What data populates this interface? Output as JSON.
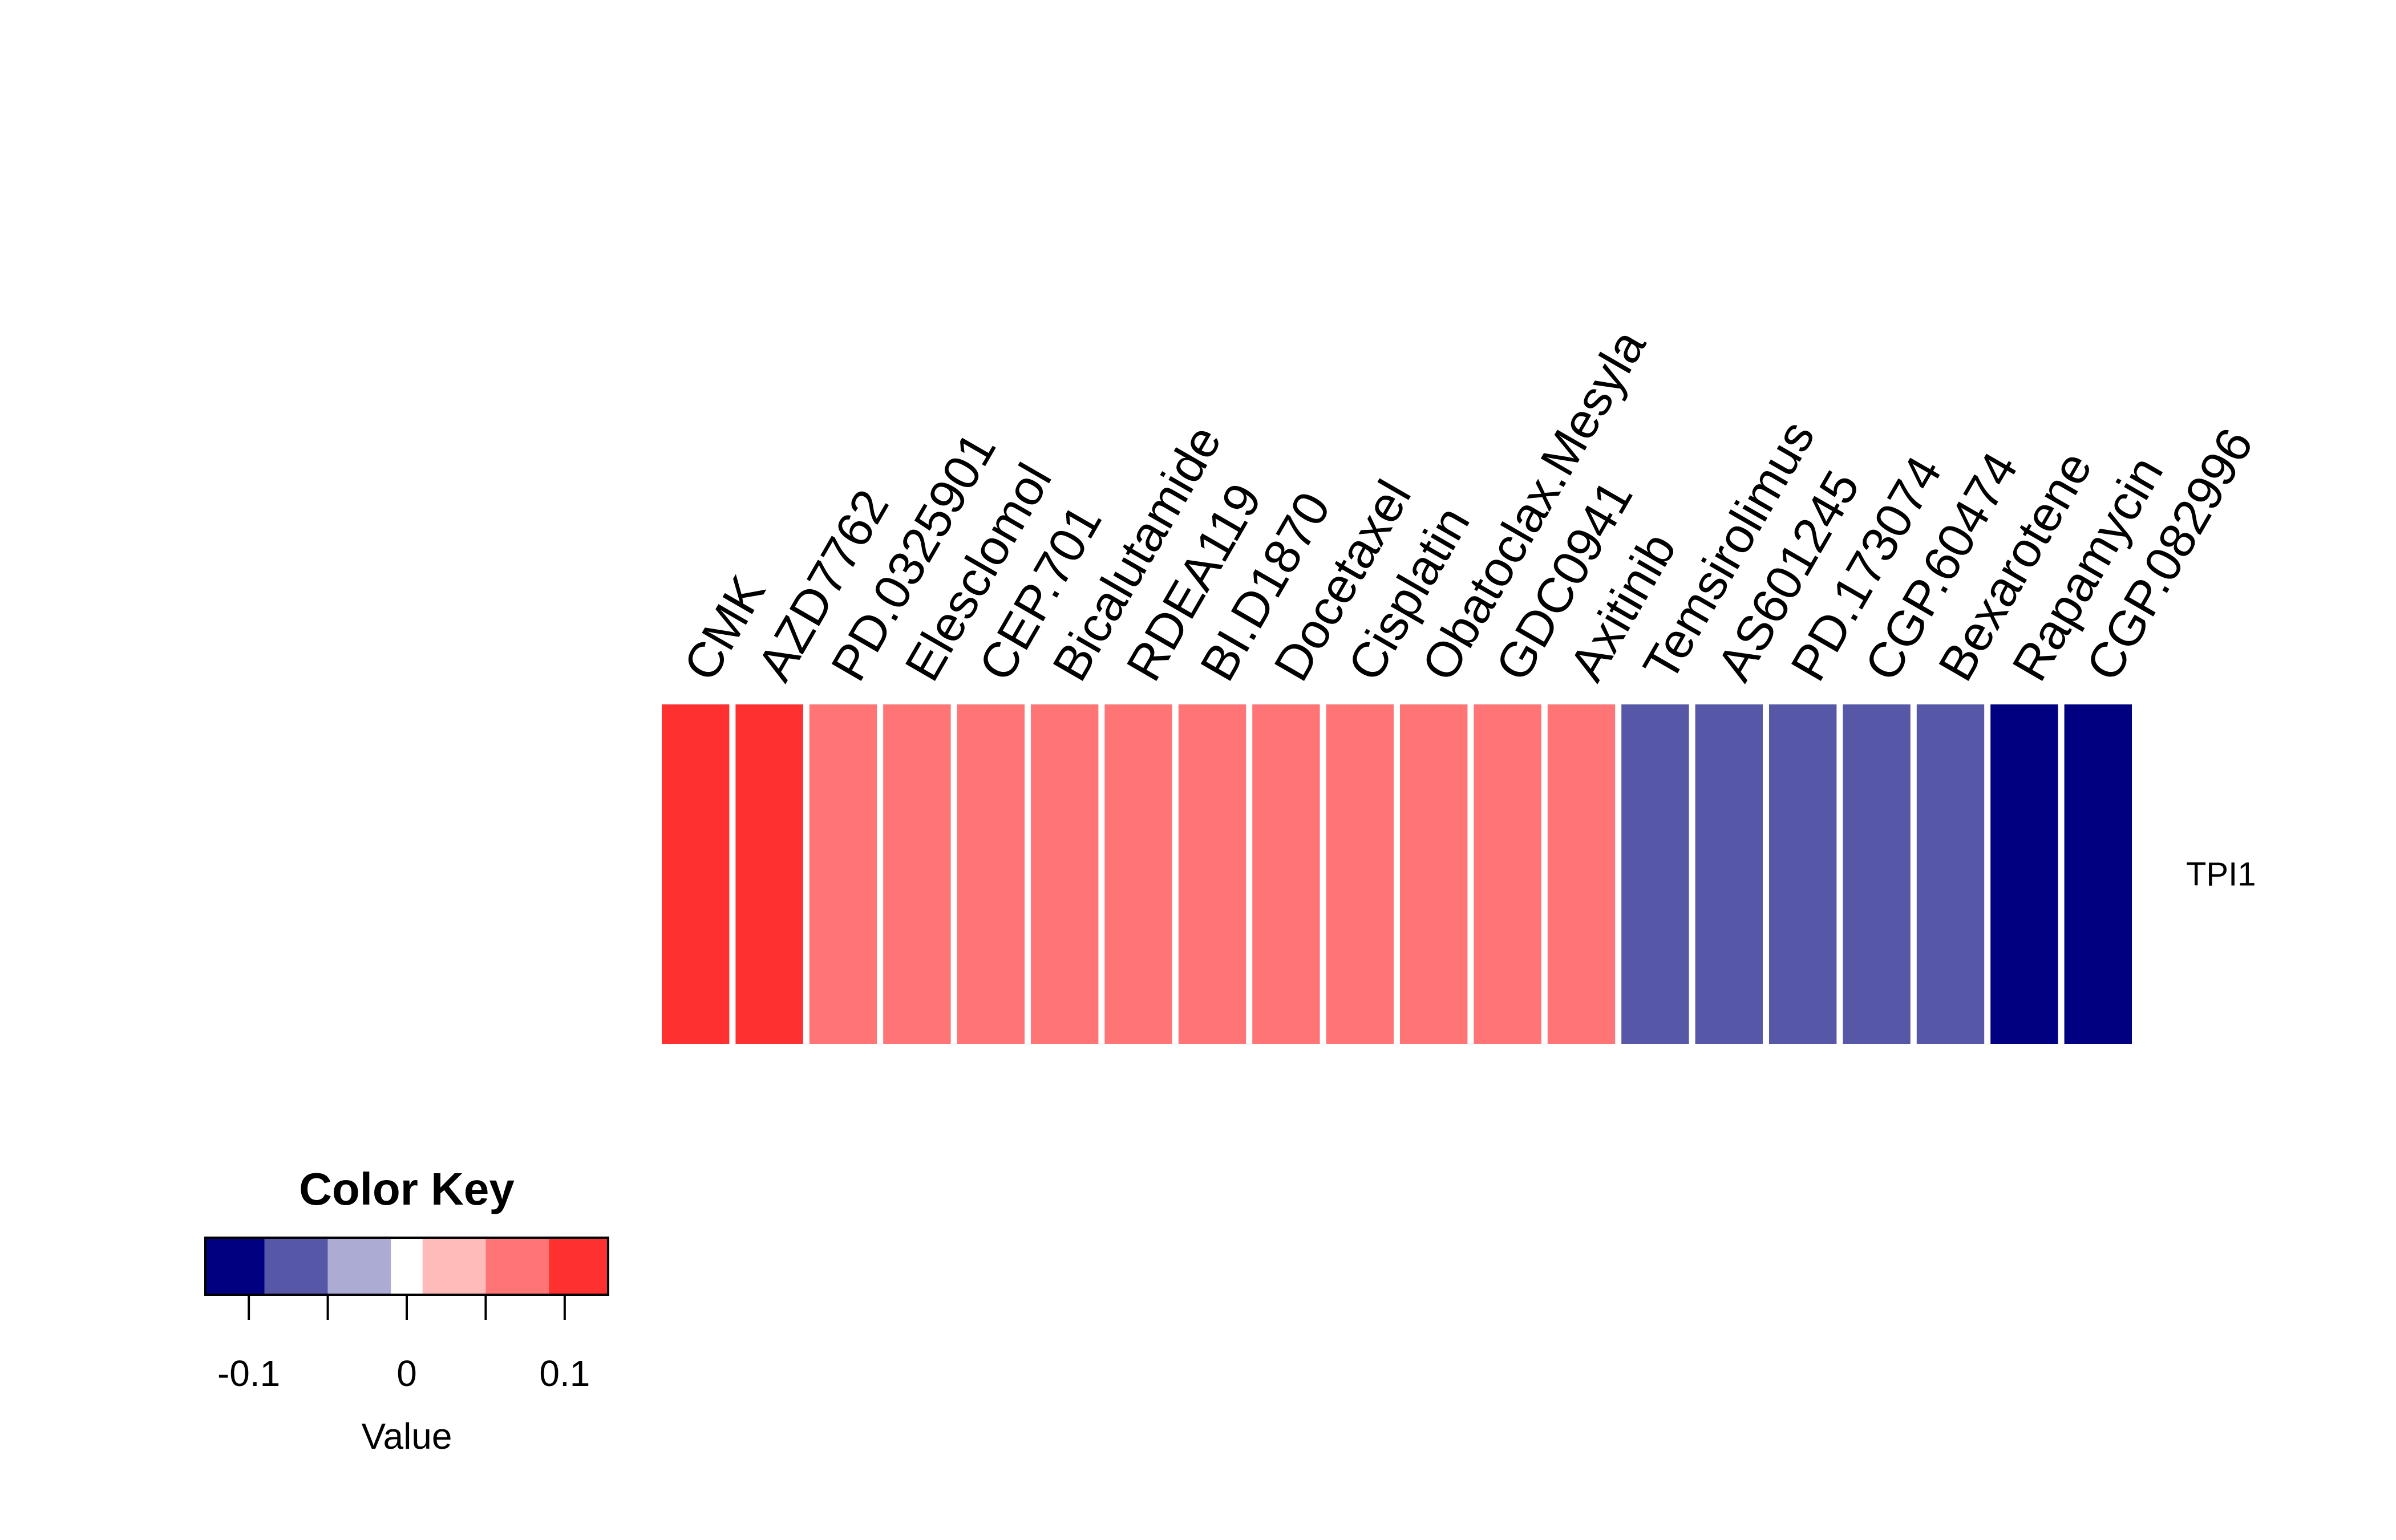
{
  "chart_data": {
    "type": "heatmap",
    "columns": [
      "CMK",
      "AZD7762",
      "PD.0325901",
      "Elesclomol",
      "CEP.701",
      "Bicalutamide",
      "RDEA119",
      "BI.D1870",
      "Docetaxel",
      "Cisplatin",
      "Obatoclax.Mesyla",
      "GDC0941",
      "Axitinib",
      "Temsirolimus",
      "AS601245",
      "PD.173074",
      "CGP.60474",
      "Bexarotene",
      "Rapamycin",
      "CGP.082996"
    ],
    "rows": [
      "TPI1"
    ],
    "values": [
      [
        0.11,
        0.11,
        0.07,
        0.07,
        0.07,
        0.07,
        0.07,
        0.07,
        0.07,
        0.07,
        0.07,
        0.07,
        0.07,
        -0.07,
        -0.07,
        -0.07,
        -0.07,
        -0.07,
        -0.11,
        -0.11
      ]
    ],
    "color_key": {
      "title": "Color Key",
      "xlabel": "Value",
      "range": [
        -0.1275,
        0.1275
      ],
      "breaks": [
        -0.1275,
        -0.09,
        -0.05,
        -0.01,
        0.01,
        0.05,
        0.09,
        0.1275
      ],
      "colors": [
        "#000080",
        "#5757A8",
        "#ABABD3",
        "#FFFFFF",
        "#FFBABA",
        "#FF7575",
        "#FF3030"
      ],
      "ticks": [
        -0.1,
        -0.05,
        0,
        0.05,
        0.1
      ],
      "tick_labels": [
        "-0.1",
        "",
        "0",
        "",
        "0.1"
      ]
    }
  }
}
